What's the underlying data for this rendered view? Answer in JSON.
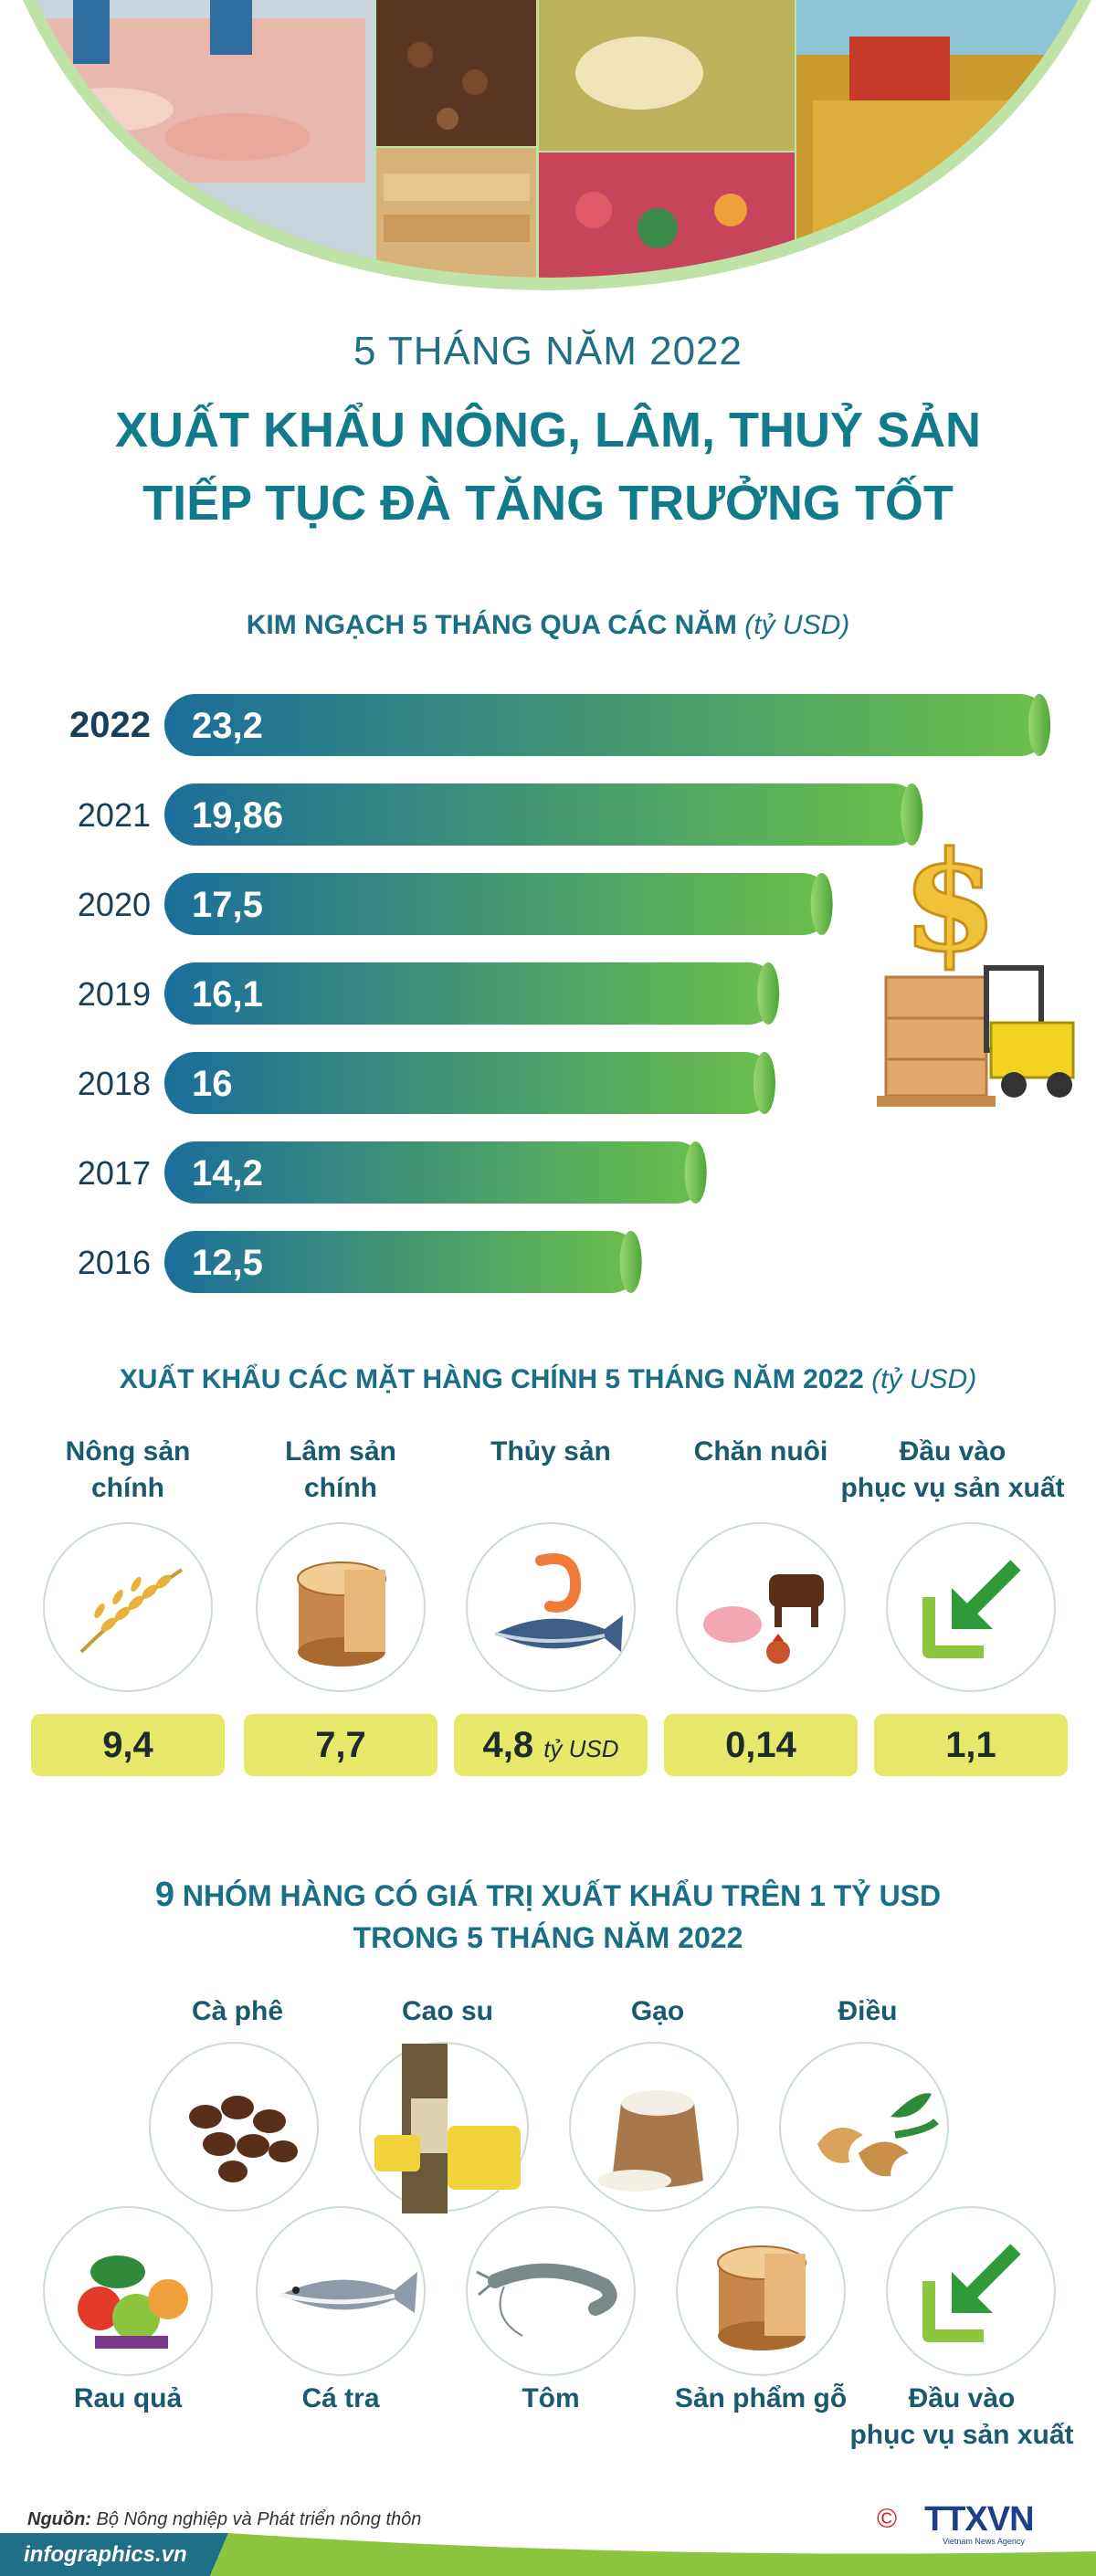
{
  "header": {
    "subtitle": "5 THÁNG NĂM 2022",
    "title_line1": "XUẤT KHẨU NÔNG, LÂM, THUỶ SẢN",
    "title_line2": "TIẾP TỤC ĐÀ TĂNG TRƯỞNG TỐT"
  },
  "chart_heading": {
    "text": "KIM NGẠCH 5 THÁNG QUA CÁC NĂM",
    "unit": "(tỷ USD)"
  },
  "chart_data": {
    "type": "bar",
    "orientation": "horizontal",
    "title": "KIM NGẠCH 5 THÁNG QUA CÁC NĂM",
    "unit": "(tỷ USD)",
    "categories": [
      "2022",
      "2021",
      "2020",
      "2019",
      "2018",
      "2017",
      "2016"
    ],
    "values": [
      23.2,
      19.86,
      17.5,
      16.1,
      16,
      14.2,
      12.5
    ],
    "value_labels": [
      "23,2",
      "19,86",
      "17,5",
      "16,1",
      "16",
      "14,2",
      "12,5"
    ],
    "highlight": "2022",
    "xlim": [
      0,
      23.2
    ],
    "colors": {
      "start": "#1b6e9a",
      "end": "#6cc04a"
    }
  },
  "main_products": {
    "heading": "XUẤT KHẨU CÁC MẶT HÀNG CHÍNH 5 THÁNG NĂM 2022",
    "unit": "(tỷ USD)",
    "items": [
      {
        "label_line1": "Nông sản",
        "label_line2": "chính",
        "value": "9,4",
        "unit": "",
        "icon": "rice-icon"
      },
      {
        "label_line1": "Lâm sản",
        "label_line2": "chính",
        "value": "7,7",
        "unit": "",
        "icon": "wood-log-icon"
      },
      {
        "label_line1": "Thủy sản",
        "label_line2": "",
        "value": "4,8",
        "unit": "tỷ USD",
        "icon": "shrimp-fish-icon"
      },
      {
        "label_line1": "Chăn nuôi",
        "label_line2": "",
        "value": "0,14",
        "unit": "",
        "icon": "livestock-icon"
      },
      {
        "label_line1": "Đầu vào",
        "label_line2": "phục vụ sản xuất",
        "value": "1,1",
        "unit": "",
        "icon": "input-arrow-icon"
      }
    ]
  },
  "groups": {
    "heading_num": "9",
    "heading_rest": "NHÓM HÀNG CÓ GIÁ TRỊ XUẤT KHẨU TRÊN 1 TỶ USD",
    "heading_line2": "TRONG 5 THÁNG NĂM 2022",
    "items": [
      {
        "label": "Cà phê",
        "icon": "coffee-icon"
      },
      {
        "label": "Cao su",
        "icon": "rubber-icon"
      },
      {
        "label": "Gạo",
        "icon": "rice-sack-icon"
      },
      {
        "label": "Điều",
        "icon": "cashew-icon"
      },
      {
        "label": "Rau quả",
        "icon": "vegetables-icon"
      },
      {
        "label": "Cá tra",
        "icon": "pangasius-icon"
      },
      {
        "label": "Tôm",
        "icon": "prawn-icon"
      },
      {
        "label": "Sản phẩm gỗ",
        "icon": "wood-product-icon"
      },
      {
        "label": "Đầu vào",
        "label_line2": "phục vụ sản xuất",
        "icon": "input-arrow-icon"
      }
    ]
  },
  "footer": {
    "source_label": "Nguồn:",
    "source_text": "Bộ Nông nghiệp và Phát triển nông thôn",
    "site": "infographics.vn",
    "brand": "TTXVN",
    "brand_sub": "Vietnam News Agency",
    "copyright": "©"
  },
  "colors": {
    "teal": "#117a8b",
    "navy": "#1a5a6e",
    "yellow": "#e6e86a",
    "green": "#6cc04a"
  }
}
